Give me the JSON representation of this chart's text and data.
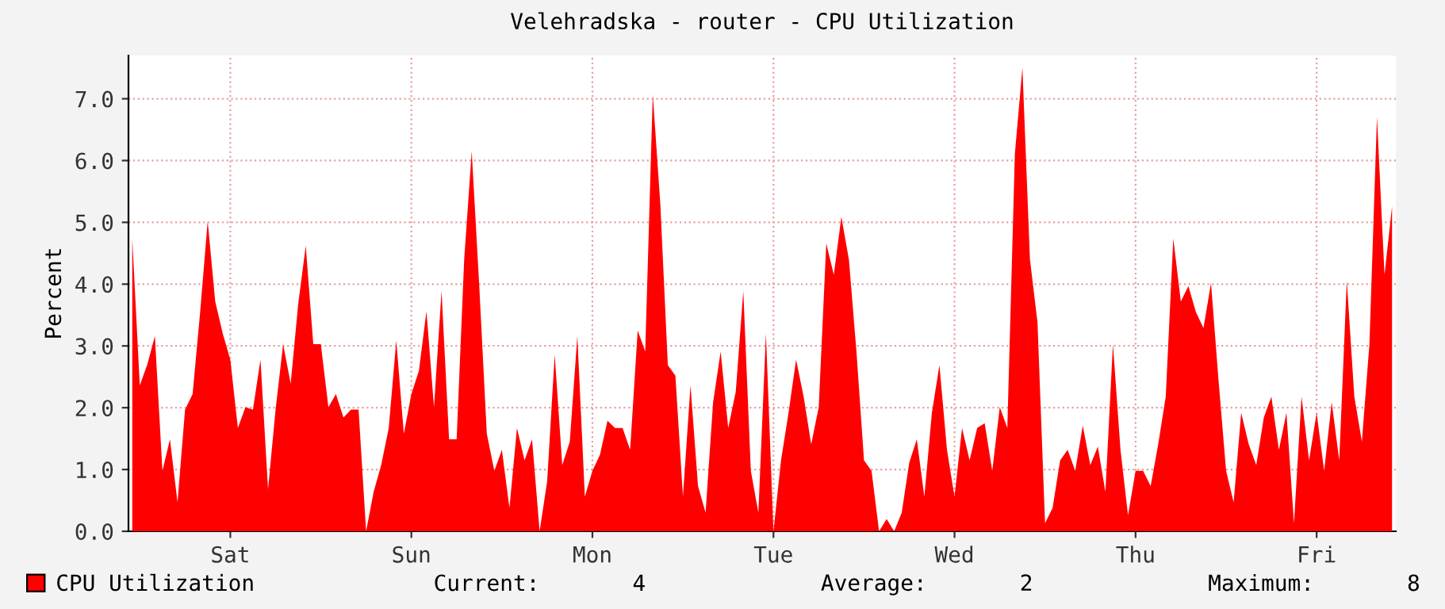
{
  "chart_data": {
    "type": "area",
    "title": "Velehradska - router - CPU Utilization",
    "ylabel": "Percent",
    "categories": [
      null,
      null,
      null,
      null,
      null,
      null,
      null,
      null,
      null,
      null,
      null,
      null,
      null,
      "Sat",
      null,
      null,
      null,
      null,
      null,
      null,
      null,
      null,
      null,
      null,
      null,
      null,
      null,
      null,
      null,
      null,
      null,
      null,
      null,
      null,
      null,
      null,
      null,
      "Sun",
      null,
      null,
      null,
      null,
      null,
      null,
      null,
      null,
      null,
      null,
      null,
      null,
      null,
      null,
      null,
      null,
      null,
      null,
      null,
      null,
      null,
      null,
      null,
      "Mon",
      null,
      null,
      null,
      null,
      null,
      null,
      null,
      null,
      null,
      null,
      null,
      null,
      null,
      null,
      null,
      null,
      null,
      null,
      null,
      null,
      null,
      null,
      null,
      "Tue",
      null,
      null,
      null,
      null,
      null,
      null,
      null,
      null,
      null,
      null,
      null,
      null,
      null,
      null,
      null,
      null,
      null,
      null,
      null,
      null,
      null,
      null,
      null,
      "Wed",
      null,
      null,
      null,
      null,
      null,
      null,
      null,
      null,
      null,
      null,
      null,
      null,
      null,
      null,
      null,
      null,
      null,
      null,
      null,
      null,
      null,
      null,
      null,
      "Thu",
      null,
      null,
      null,
      null,
      null,
      null,
      null,
      null,
      null,
      null,
      null,
      null,
      null,
      null,
      null,
      null,
      null,
      null,
      null,
      null,
      null,
      null,
      null,
      "Fri",
      null,
      null,
      null,
      null,
      null,
      null,
      null,
      null,
      null,
      null
    ],
    "series": [
      {
        "name": "CPU Utilization",
        "color": "#ff0000",
        "values": [
          4.74,
          2.36,
          2.7,
          3.16,
          0.98,
          1.49,
          0.47,
          1.97,
          2.22,
          3.55,
          5.02,
          3.72,
          3.2,
          2.78,
          1.67,
          2.01,
          1.97,
          2.78,
          0.68,
          1.97,
          3.03,
          2.39,
          3.68,
          4.62,
          3.03,
          3.03,
          2.01,
          2.22,
          1.84,
          1.97,
          1.97,
          0,
          0.64,
          1.07,
          1.67,
          3.09,
          1.58,
          2.22,
          2.6,
          3.56,
          2.01,
          3.89,
          1.49,
          1.49,
          4.4,
          6.15,
          3.97,
          1.58,
          0.98,
          1.32,
          0.38,
          1.67,
          1.15,
          1.49,
          0,
          0.81,
          2.86,
          1.07,
          1.45,
          3.16,
          0.56,
          0.98,
          1.24,
          1.79,
          1.67,
          1.67,
          1.32,
          3.25,
          2.91,
          7.07,
          5.3,
          2.69,
          2.52,
          0.56,
          2.36,
          0.73,
          0.3,
          2.09,
          2.91,
          1.67,
          2.26,
          3.89,
          0.98,
          0.3,
          3.2,
          0,
          1.15,
          1.92,
          2.78,
          2.18,
          1.41,
          2.01,
          4.66,
          4.15,
          5.09,
          4.4,
          2.91,
          1.15,
          0.98,
          0,
          0.2,
          0,
          0.3,
          1.11,
          1.49,
          0.56,
          1.92,
          2.69,
          1.32,
          0.56,
          1.67,
          1.15,
          1.67,
          1.75,
          0.98,
          2.01,
          1.67,
          6.11,
          7.5,
          4.4,
          3.38,
          0.13,
          0.38,
          1.15,
          1.32,
          0.98,
          1.71,
          1.07,
          1.37,
          0.64,
          3.03,
          1.32,
          0.26,
          0.98,
          0.98,
          0.73,
          1.41,
          2.18,
          4.74,
          3.72,
          3.97,
          3.55,
          3.29,
          4.02,
          2.44,
          0.98,
          0.47,
          1.92,
          1.41,
          1.07,
          1.84,
          2.18,
          1.32,
          1.92,
          0.13,
          2.18,
          1.15,
          1.92,
          0.98,
          2.09,
          1.15,
          4.06,
          2.18,
          1.45,
          3.03,
          6.71,
          4.15,
          5.26
        ]
      }
    ],
    "ylim": [
      0,
      7.7
    ],
    "yticks": [
      {
        "value": 0,
        "label": "0.0"
      },
      {
        "value": 1,
        "label": "1.0"
      },
      {
        "value": 2,
        "label": "2.0"
      },
      {
        "value": 3,
        "label": "3.0"
      },
      {
        "value": 4,
        "label": "4.0"
      },
      {
        "value": 5,
        "label": "5.0"
      },
      {
        "value": 6,
        "label": "6.0"
      },
      {
        "value": 7,
        "label": "7.0"
      }
    ],
    "grid": true,
    "legend": "bottom left",
    "annotations": [
      "Current:       4",
      "Average:       2",
      "Maximum:       8"
    ]
  }
}
